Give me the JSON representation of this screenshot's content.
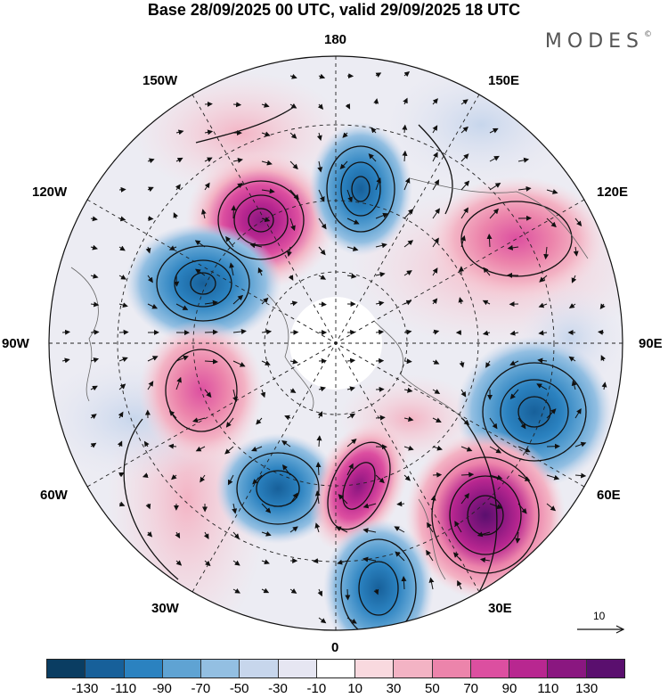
{
  "header": {
    "title": "Base 28/09/2025 00 UTC, valid 29/09/2025 18 UTC",
    "brand": "MODES",
    "brand_mark": "©"
  },
  "map": {
    "longitude_labels": {
      "top": "180",
      "top_right": "150E",
      "right_upper": "120E",
      "right": "90E",
      "right_lower": "60E",
      "bottom_right": "30E",
      "bottom": "0",
      "bottom_left": "30W",
      "left_lower": "60W",
      "left": "90W",
      "left_upper": "120W",
      "top_left": "150W"
    },
    "reference_vector": "10"
  },
  "colorbar": {
    "colors": [
      "#0a3d62",
      "#17609a",
      "#2b82c0",
      "#5fa3d3",
      "#93bfe2",
      "#c7d6ec",
      "#e6e6f2",
      "#ffffff",
      "#f9d9df",
      "#f3b3c4",
      "#ec84ab",
      "#dc4fa0",
      "#b82790",
      "#8a1780",
      "#5a0f6e"
    ],
    "tick_labels": [
      "-130",
      "-110",
      "-90",
      "-70",
      "-50",
      "-30",
      "-10",
      "10",
      "30",
      "50",
      "70",
      "90",
      "110",
      "130"
    ]
  }
}
